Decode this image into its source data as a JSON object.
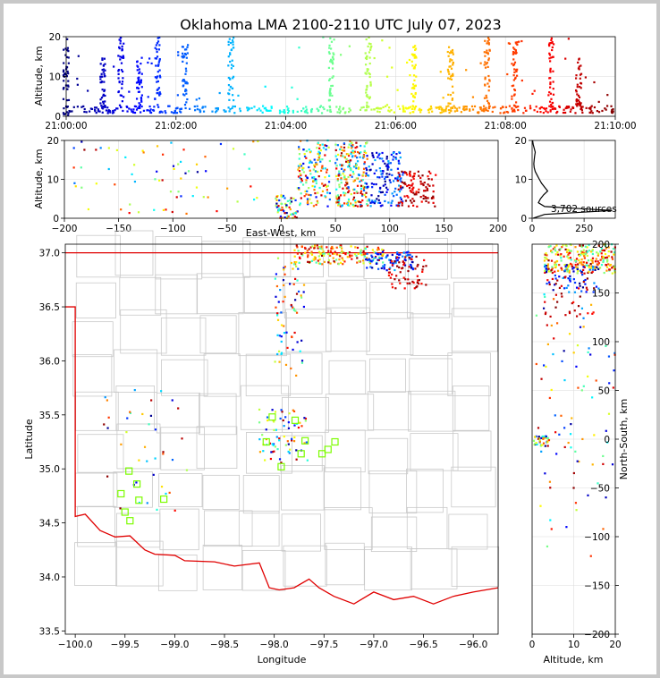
{
  "title": "Oklahoma LMA 2100-2110 UTC July 07, 2023",
  "chart_data": [
    {
      "type": "scatter",
      "panel": "time-altitude",
      "ylabel": "Altitude, km",
      "xlim": [
        "21:00:00",
        "21:10:00"
      ],
      "ylim": [
        0,
        20
      ],
      "x_ticks": [
        "21:00:00",
        "21:02:00",
        "21:04:00",
        "21:06:00",
        "21:08:00",
        "21:10:00"
      ],
      "y_ticks": [
        "0",
        "10",
        "20"
      ],
      "grid": true,
      "color_by": "time",
      "clusters": [
        {
          "time": "21:00:00",
          "alt_range": [
            0,
            20
          ],
          "note": "continuous low-altitude sources across whole period near 1-2 km"
        },
        {
          "time": "21:00:40",
          "alt_range": [
            2,
            15
          ]
        },
        {
          "time": "21:01:00",
          "alt_range": [
            2,
            20
          ]
        },
        {
          "time": "21:01:20",
          "alt_range": [
            2,
            15
          ]
        },
        {
          "time": "21:01:40",
          "alt_range": [
            2,
            20
          ]
        },
        {
          "time": "21:02:10",
          "alt_range": [
            2,
            18
          ]
        },
        {
          "time": "21:03:00",
          "alt_range": [
            2,
            20
          ]
        },
        {
          "time": "21:04:50",
          "alt_range": [
            2,
            20
          ]
        },
        {
          "time": "21:05:30",
          "alt_range": [
            2,
            20
          ]
        },
        {
          "time": "21:06:20",
          "alt_range": [
            2,
            18
          ]
        },
        {
          "time": "21:07:00",
          "alt_range": [
            2,
            18
          ]
        },
        {
          "time": "21:07:40",
          "alt_range": [
            2,
            20
          ]
        },
        {
          "time": "21:08:10",
          "alt_range": [
            2,
            20
          ]
        },
        {
          "time": "21:08:50",
          "alt_range": [
            2,
            20
          ]
        },
        {
          "time": "21:09:20",
          "alt_range": [
            2,
            15
          ]
        }
      ]
    },
    {
      "type": "scatter",
      "panel": "east-west-altitude",
      "xlabel": "East-West, km",
      "ylabel": "Altitude, km",
      "xlim": [
        -200,
        200
      ],
      "ylim": [
        0,
        20
      ],
      "x_ticks": [
        "−200",
        "−150",
        "−100",
        "−50",
        "0",
        "50",
        "100",
        "150",
        "200"
      ],
      "y_ticks": [
        "0",
        "10",
        "20"
      ],
      "grid": true
    },
    {
      "type": "line",
      "panel": "altitude-histogram",
      "xlim": [
        0,
        400
      ],
      "ylim": [
        0,
        20
      ],
      "x_ticks": [
        "0",
        "250"
      ],
      "y_ticks": [
        "0",
        "10",
        "20"
      ],
      "annotation": "3,702 sources",
      "profile": {
        "altitude_km": [
          0,
          1,
          2,
          3,
          4,
          5,
          6,
          7,
          8,
          9,
          10,
          11,
          12,
          13,
          14,
          15,
          16,
          17,
          18,
          19,
          20
        ],
        "count": [
          5,
          60,
          385,
          60,
          30,
          40,
          55,
          75,
          60,
          45,
          35,
          25,
          15,
          10,
          8,
          10,
          12,
          15,
          10,
          5,
          2
        ]
      }
    },
    {
      "type": "scatter",
      "panel": "plan-view",
      "xlabel": "Longitude",
      "ylabel": "Latitude",
      "xlim": [
        -100.1,
        -95.75
      ],
      "ylim": [
        33.47,
        37.08
      ],
      "x_ticks": [
        "−100.0",
        "−99.5",
        "−99.0",
        "−98.5",
        "−98.0",
        "−97.5",
        "−97.0",
        "−96.5",
        "−96.0"
      ],
      "y_ticks": [
        "33.5",
        "34.0",
        "34.5",
        "35.0",
        "35.5",
        "36.0",
        "36.5",
        "37.0"
      ],
      "stations": [
        {
          "lon": -98.02,
          "lat": 35.48
        },
        {
          "lon": -97.79,
          "lat": 35.45
        },
        {
          "lon": -98.08,
          "lat": 35.25
        },
        {
          "lon": -97.93,
          "lat": 35.02
        },
        {
          "lon": -97.73,
          "lat": 35.14
        },
        {
          "lon": -97.69,
          "lat": 35.26
        },
        {
          "lon": -97.52,
          "lat": 35.14
        },
        {
          "lon": -97.46,
          "lat": 35.18
        },
        {
          "lon": -97.39,
          "lat": 35.25
        },
        {
          "lon": -99.46,
          "lat": 34.98
        },
        {
          "lon": -99.38,
          "lat": 34.86
        },
        {
          "lon": -99.54,
          "lat": 34.77
        },
        {
          "lon": -99.36,
          "lat": 34.71
        },
        {
          "lon": -99.11,
          "lat": 34.72
        },
        {
          "lon": -99.5,
          "lat": 34.6
        },
        {
          "lon": -99.45,
          "lat": 34.52
        }
      ]
    },
    {
      "type": "scatter",
      "panel": "altitude-north-south",
      "xlabel": "Altitude, km",
      "ylabel": "North-South, km",
      "xlim": [
        0,
        20
      ],
      "ylim": [
        -200,
        200
      ],
      "x_ticks": [
        "0",
        "10",
        "20"
      ],
      "y_ticks": [
        "−200",
        "−150",
        "−100",
        "−50",
        "0",
        "50",
        "100",
        "150",
        "200"
      ],
      "grid": true
    }
  ]
}
